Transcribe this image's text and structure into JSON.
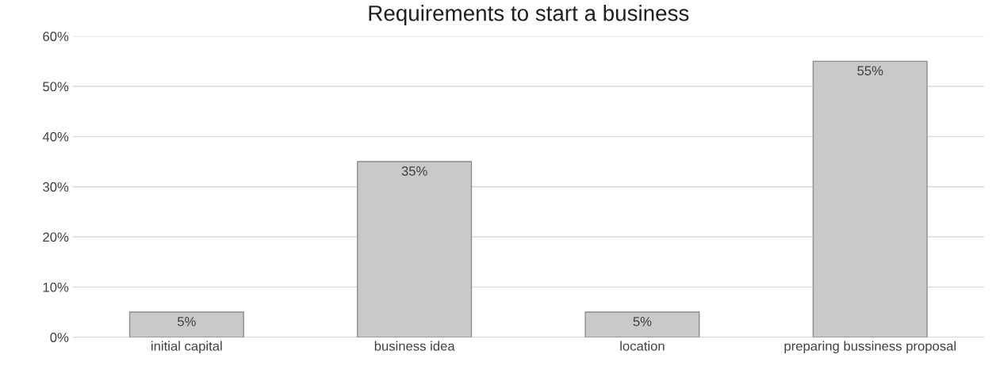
{
  "chart_data": {
    "type": "bar",
    "title": "Requirements to start a business",
    "categories": [
      "initial capital",
      "business idea",
      "location",
      "preparing bussiness proposal"
    ],
    "values": [
      5,
      35,
      5,
      55
    ],
    "value_labels": [
      "5%",
      "35%",
      "5%",
      "55%"
    ],
    "color": "#c9c9c9",
    "ylim": [
      0,
      60
    ],
    "yticks": [
      {
        "value": 0,
        "label": "0%"
      },
      {
        "value": 10,
        "label": "10%"
      },
      {
        "value": 20,
        "label": "20%"
      },
      {
        "value": 30,
        "label": "30%"
      },
      {
        "value": 40,
        "label": "40%"
      },
      {
        "value": 50,
        "label": "50%"
      },
      {
        "value": 60,
        "label": "60%"
      }
    ],
    "grid": "y",
    "legend": false
  }
}
